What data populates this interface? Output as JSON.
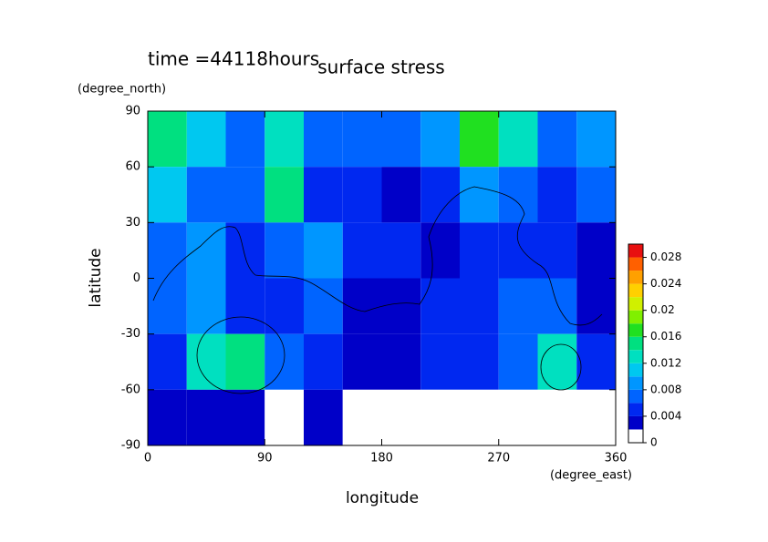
{
  "chart_data": {
    "type": "heatmap",
    "title": "surface stress",
    "subtitle": "time =44118hours",
    "x_label": "longitude",
    "x_unit": "(degree_east)",
    "y_label": "latitude",
    "y_unit": "(degree_north)",
    "xlim": [
      0,
      360
    ],
    "xticks": [
      0,
      90,
      180,
      270,
      360
    ],
    "ylim": [
      -90,
      90
    ],
    "yticks": [
      -90,
      -60,
      -30,
      0,
      30,
      60,
      90
    ],
    "x": [
      15,
      45,
      75,
      105,
      135,
      165,
      195,
      225,
      255,
      285,
      315,
      345
    ],
    "y": [
      75,
      45,
      15,
      -15,
      -45,
      -75
    ],
    "z": [
      [
        0.014,
        0.01,
        0.006,
        0.012,
        0.006,
        0.006,
        0.006,
        0.008,
        0.016,
        0.012,
        0.006,
        0.008
      ],
      [
        0.01,
        0.006,
        0.006,
        0.014,
        0.004,
        0.004,
        0.002,
        0.004,
        0.008,
        0.006,
        0.004,
        0.006
      ],
      [
        0.006,
        0.008,
        0.004,
        0.006,
        0.008,
        0.004,
        0.004,
        0.002,
        0.004,
        0.004,
        0.004,
        0.002
      ],
      [
        0.006,
        0.008,
        0.004,
        0.004,
        0.006,
        0.002,
        0.002,
        0.004,
        0.004,
        0.006,
        0.006,
        0.002
      ],
      [
        0.004,
        0.012,
        0.014,
        0.006,
        0.004,
        0.002,
        0.002,
        0.004,
        0.004,
        0.006,
        0.012,
        0.004
      ],
      [
        0.002,
        0.002,
        0.002,
        0,
        0.002,
        0,
        0,
        0,
        0,
        0,
        0,
        0
      ]
    ],
    "colorbar": {
      "lim": [
        0,
        0.03
      ],
      "ticks": [
        0,
        0.004,
        0.008,
        0.012,
        0.016,
        0.02,
        0.024,
        0.028
      ],
      "step": 0.002,
      "colors": [
        "#ffffff",
        "#0000c8",
        "#0028f0",
        "#0064ff",
        "#0096ff",
        "#00c8f0",
        "#00e0c0",
        "#00e080",
        "#20e020",
        "#80f000",
        "#d0f000",
        "#ffd000",
        "#ffa000",
        "#ff6000",
        "#e81010"
      ]
    }
  }
}
